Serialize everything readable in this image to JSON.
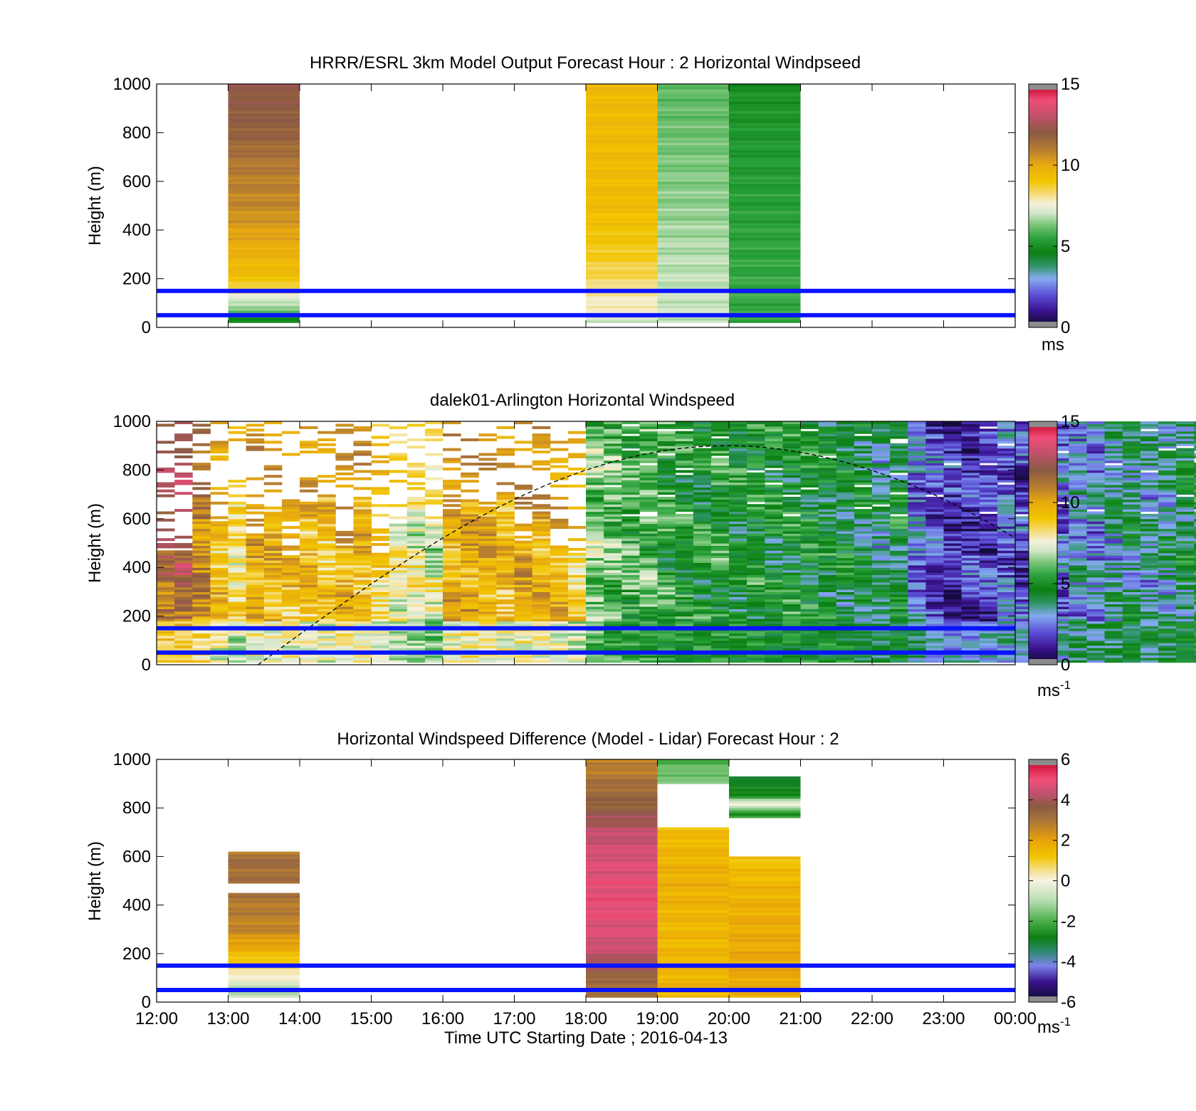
{
  "xaxis": {
    "ticks": [
      "12:00",
      "13:00",
      "14:00",
      "15:00",
      "16:00",
      "17:00",
      "18:00",
      "19:00",
      "20:00",
      "21:00",
      "22:00",
      "23:00",
      "00:00"
    ],
    "label": "Time UTC  Starting Date ; 2016-04-13"
  },
  "chart_data": [
    {
      "type": "heatmap",
      "title": "HRRR/ESRL 3km Model Output   Forecast Hour : 2 Horizontal Windpseed",
      "ylabel": "Height (m)",
      "ylim": [
        0,
        1000
      ],
      "yticks": [
        "0",
        "200",
        "400",
        "600",
        "800",
        "1000"
      ],
      "xlim": [
        "12:00",
        "00:00"
      ],
      "colorbar": {
        "ticks": [
          "0",
          "5",
          "10",
          "15"
        ],
        "min": 0,
        "max": 15,
        "unit": "ms"
      },
      "reference_lines_m": [
        50,
        150
      ],
      "columns": [
        {
          "start": "13:00",
          "end": "14:00",
          "profile": [
            [
              25,
              4.6
            ],
            [
              45,
              5.0
            ],
            [
              70,
              6.3
            ],
            [
              100,
              6.7
            ],
            [
              130,
              7.6
            ],
            [
              170,
              8.5
            ],
            [
              200,
              9.2
            ],
            [
              300,
              9.7
            ],
            [
              400,
              10.2
            ],
            [
              500,
              10.7
            ],
            [
              650,
              11.0
            ],
            [
              800,
              11.8
            ],
            [
              1000,
              12.1
            ]
          ]
        },
        {
          "start": "18:00",
          "end": "19:00",
          "profile": [
            [
              25,
              6.9
            ],
            [
              60,
              7.6
            ],
            [
              120,
              7.9
            ],
            [
              200,
              8.4
            ],
            [
              300,
              8.8
            ],
            [
              400,
              9.1
            ],
            [
              500,
              9.3
            ],
            [
              1000,
              9.4
            ]
          ]
        },
        {
          "start": "19:00",
          "end": "20:00",
          "profile": [
            [
              100,
              7.0
            ],
            [
              300,
              6.8
            ],
            [
              500,
              6.5
            ],
            [
              800,
              6.2
            ],
            [
              1000,
              6.0
            ]
          ]
        },
        {
          "start": "20:00",
          "end": "21:00",
          "profile": [
            [
              200,
              5.6
            ],
            [
              500,
              5.4
            ],
            [
              800,
              5.2
            ],
            [
              1000,
              5.0
            ]
          ]
        }
      ]
    },
    {
      "type": "heatmap",
      "title": "dalek01-Arlington  Horizontal Windspeed",
      "ylabel": "Height (m)",
      "ylim": [
        0,
        1000
      ],
      "yticks": [
        "0",
        "200",
        "400",
        "600",
        "800",
        "1000"
      ],
      "xlim": [
        "12:00",
        "00:00"
      ],
      "colorbar": {
        "ticks": [
          "0",
          "5",
          "10",
          "15"
        ],
        "min": 0,
        "max": 15,
        "unit": "ms",
        "unit_exp": "-1"
      },
      "reference_lines_m": [
        50,
        150
      ],
      "boundary_layer_curve": {
        "start_time": "13:25",
        "peak_time": "20:00",
        "peak_height_m": 900,
        "end_value_m": 520
      },
      "column_width_minutes": 15,
      "column_mean_speed": [
        11.5,
        11.8,
        10.5,
        9.0,
        8.2,
        9.6,
        9.4,
        9.2,
        9.3,
        9.0,
        9.6,
        9.5,
        8.4,
        7.9,
        7.6,
        7.2,
        9.5,
        9.8,
        9.6,
        9.4,
        9.7,
        9.5,
        9.2,
        8.5,
        6.4,
        6.1,
        5.8,
        5.9,
        5.2,
        5.0,
        4.9,
        5.1,
        4.8,
        5.0,
        4.7,
        4.9,
        4.8,
        4.6,
        4.4,
        4.2,
        3.8,
        4.4,
        2.6,
        2.0,
        1.6,
        1.5,
        1.6,
        2.1,
        1.8,
        2.5,
        2.3,
        3.0,
        2.7,
        3.3,
        3.8,
        3.3,
        3.6,
        4.2,
        4.6,
        4.5,
        4.0,
        4.8,
        4.7,
        4.8,
        4.1,
        4.9,
        4.8,
        4.6,
        4.4,
        4.3,
        4.0,
        3.2
      ]
    },
    {
      "type": "heatmap",
      "title": "Horizontal Windspeed Difference (Model - Lidar) Forecast Hour : 2",
      "ylabel": "Height (m)",
      "ylim": [
        0,
        1000
      ],
      "yticks": [
        "0",
        "200",
        "400",
        "600",
        "800",
        "1000"
      ],
      "xlim": [
        "12:00",
        "00:00"
      ],
      "colorbar": {
        "ticks": [
          "-6",
          "-4",
          "-2",
          "0",
          "2",
          "4",
          "6"
        ],
        "min": -6,
        "max": 6,
        "unit": "ms",
        "unit_exp": "-1"
      },
      "reference_lines_m": [
        50,
        150
      ],
      "columns": [
        {
          "start": "13:00",
          "end": "14:00",
          "profile": [
            [
              25,
              -0.9
            ],
            [
              50,
              -1.2
            ],
            [
              80,
              -0.5
            ],
            [
              110,
              0.2
            ],
            [
              150,
              0.8
            ],
            [
              200,
              1.5
            ],
            [
              300,
              2.6
            ],
            [
              450,
              3.0
            ],
            [
              490,
              null
            ],
            [
              500,
              3.1
            ],
            [
              600,
              3.2
            ],
            [
              620,
              2.8
            ],
            [
              660,
              null
            ],
            [
              1000,
              null
            ]
          ]
        },
        {
          "start": "18:00",
          "end": "19:00",
          "profile": [
            [
              25,
              3.2
            ],
            [
              60,
              2.9
            ],
            [
              150,
              4.0
            ],
            [
              250,
              4.6
            ],
            [
              400,
              4.9
            ],
            [
              500,
              4.8
            ],
            [
              620,
              4.6
            ],
            [
              700,
              4.3
            ],
            [
              800,
              3.6
            ],
            [
              1000,
              2.6
            ]
          ]
        },
        {
          "start": "19:00",
          "end": "20:00",
          "profile": [
            [
              25,
              1.6
            ],
            [
              300,
              1.5
            ],
            [
              500,
              1.7
            ],
            [
              650,
              1.5
            ],
            [
              720,
              1.4
            ],
            [
              900,
              null
            ],
            [
              930,
              -1.5
            ],
            [
              990,
              -2.0
            ],
            [
              1000,
              -2.3
            ]
          ]
        },
        {
          "start": "20:00",
          "end": "21:00",
          "profile": [
            [
              25,
              1.9
            ],
            [
              300,
              1.8
            ],
            [
              500,
              1.5
            ],
            [
              600,
              1.3
            ],
            [
              760,
              null
            ],
            [
              780,
              -2.4
            ],
            [
              820,
              0.0
            ],
            [
              850,
              -2.5
            ],
            [
              900,
              -3.0
            ],
            [
              930,
              -2.7
            ]
          ]
        }
      ]
    }
  ]
}
